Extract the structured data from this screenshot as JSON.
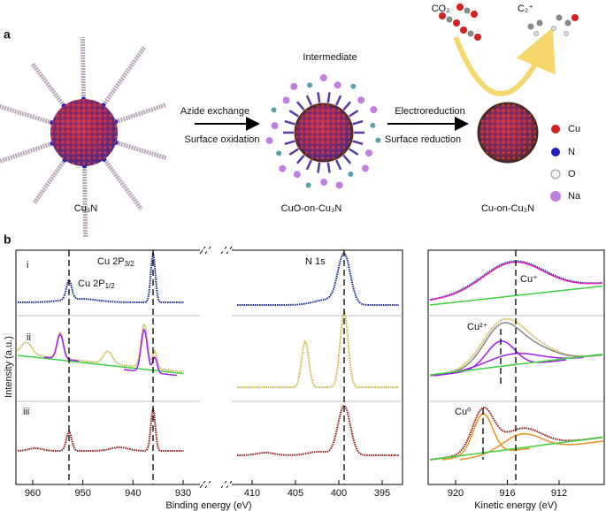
{
  "panel_a": {
    "label": "a",
    "intermediate": "Intermediate",
    "arrow1_top": "Azide exchange",
    "arrow1_bottom": "Surface oxidation",
    "arrow2_top": "Electroreduction",
    "arrow2_bottom": "Surface reduction",
    "particles": [
      "Cu₃N",
      "CuO-on-Cu₃N",
      "Cu-on-Cu₃N"
    ],
    "reactant": "CO₂",
    "product": "C₂⁺",
    "legend": [
      "Cu",
      "N",
      "O",
      "Na"
    ]
  },
  "panel_b": {
    "label": "b",
    "y_label": "Intensity (a.u.)",
    "rows": [
      "i",
      "ii",
      "iii"
    ],
    "left": {
      "x_label": "Binding energy (eV)",
      "ticks_cu": [
        960,
        950,
        940,
        930
      ],
      "ticks_n": [
        410,
        405,
        400,
        395
      ],
      "peak_3_2": {
        "text": "Cu 2P",
        "sub": "3/2"
      },
      "peak_1_2": {
        "text": "Cu 2P",
        "sub": "1/2"
      },
      "n1s": "N 1s"
    },
    "right": {
      "x_label": "Kinetic energy (eV)",
      "ticks": [
        920,
        916,
        912
      ],
      "states": [
        "Cu⁺",
        "Cu²⁺",
        "Cu⁰"
      ]
    }
  }
}
